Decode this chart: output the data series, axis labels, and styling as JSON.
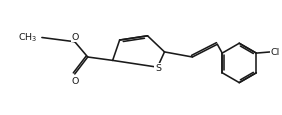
{
  "background": "#ffffff",
  "line_color": "#1a1a1a",
  "line_width": 1.15,
  "font_size": 6.8,
  "fig_width": 2.82,
  "fig_height": 1.16,
  "dpi": 100,
  "xlim": [
    0.0,
    10.0
  ],
  "ylim": [
    0.0,
    3.5
  ]
}
